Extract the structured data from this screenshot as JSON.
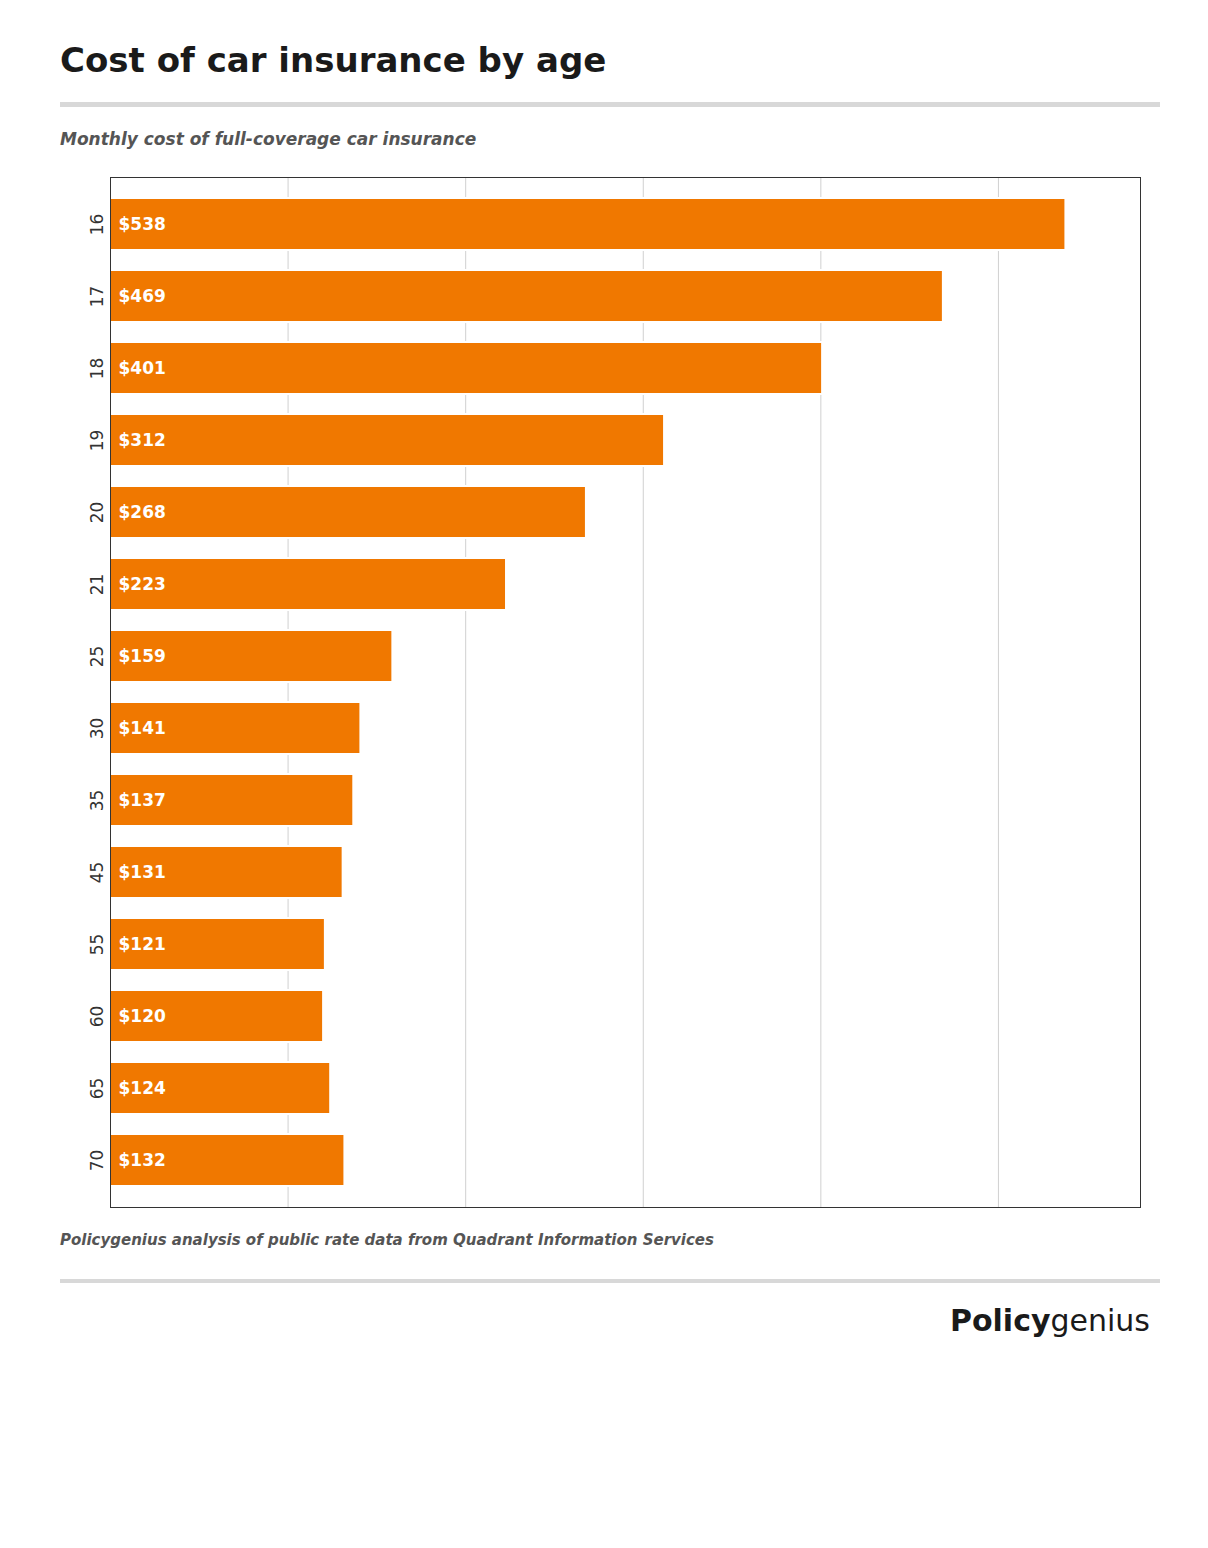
{
  "chart_data": {
    "type": "bar",
    "orientation": "horizontal",
    "title": "Cost of car insurance by age",
    "subtitle": "Monthly cost of full-coverage car insurance",
    "footnote": "Policygenius analysis of public rate data from Quadrant Information Services",
    "annotations": [
      "Policy",
      "genius"
    ],
    "categories": [
      "16",
      "17",
      "18",
      "19",
      "20",
      "21",
      "25",
      "30",
      "35",
      "45",
      "55",
      "60",
      "65",
      "70"
    ],
    "values": [
      538,
      469,
      401,
      312,
      268,
      223,
      159,
      141,
      137,
      131,
      121,
      120,
      124,
      132
    ],
    "value_labels": [
      "$538",
      "$469",
      "$401",
      "$312",
      "$268",
      "$223",
      "$159",
      "$141",
      "$137",
      "$131",
      "$121",
      "$120",
      "$124",
      "$132"
    ],
    "data_labels": true,
    "color": "#F07800",
    "xlim": [
      0,
      580
    ],
    "xticks": [
      0,
      100,
      200,
      300,
      400,
      500
    ],
    "grid": true,
    "tick_labels": "y"
  }
}
